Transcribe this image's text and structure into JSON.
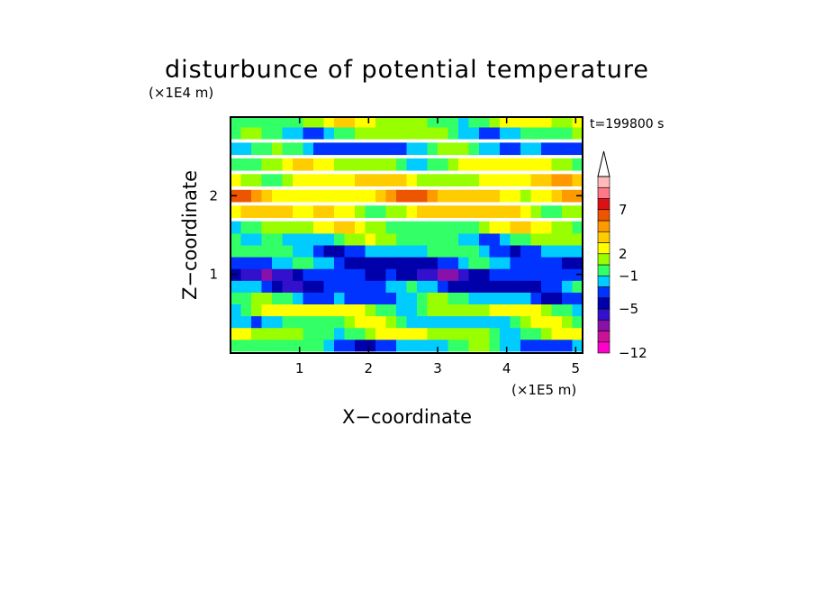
{
  "chart_data": {
    "type": "heatmap",
    "title": "disturbunce of potential temperature",
    "xlabel": "X−coordinate",
    "ylabel": "Z−coordinate",
    "x_unit": "(×1E5 m)",
    "y_unit": "(×1E4 m)",
    "time_label": "t=199800 s",
    "x_ticks": [
      "1",
      "2",
      "3",
      "4",
      "5"
    ],
    "x_tick_values": [
      1,
      2,
      3,
      4,
      5
    ],
    "y_ticks": [
      "1",
      "2"
    ],
    "y_tick_values": [
      1,
      2
    ],
    "xlim": [
      0,
      5.1
    ],
    "ylim": [
      0,
      3
    ],
    "grid": false,
    "colorbar": {
      "labels": [
        "7",
        "2",
        "−1",
        "−5",
        "−12"
      ],
      "colors": [
        "#ff00cc",
        "#cc1199",
        "#8811aa",
        "#3311cc",
        "#0000aa",
        "#0033ff",
        "#00ccff",
        "#33ff66",
        "#99ff00",
        "#ffff00",
        "#ffcc00",
        "#ff9900",
        "#ee5500",
        "#dd1111",
        "#ff7788",
        "#ffbbbb"
      ],
      "extend_top": true
    },
    "bands": [
      {
        "z": 0.1,
        "level": 6
      },
      {
        "z": 0.25,
        "level": 8
      },
      {
        "z": 0.4,
        "level": 7
      },
      {
        "z": 0.55,
        "level": 8
      },
      {
        "z": 0.7,
        "level": 6
      },
      {
        "z": 0.85,
        "level": 5
      },
      {
        "z": 1.0,
        "level": 4
      },
      {
        "z": 1.15,
        "level": 5
      },
      {
        "z": 1.3,
        "level": 6
      },
      {
        "z": 1.45,
        "level": 7
      },
      {
        "z": 1.6,
        "level": 8
      },
      {
        "z": 1.8,
        "level": 9
      },
      {
        "z": 2.0,
        "level": 10
      },
      {
        "z": 2.2,
        "level": 9
      },
      {
        "z": 2.4,
        "level": 8
      },
      {
        "z": 2.6,
        "level": 6
      },
      {
        "z": 2.8,
        "level": 7
      },
      {
        "z": 2.95,
        "level": 8
      }
    ]
  }
}
